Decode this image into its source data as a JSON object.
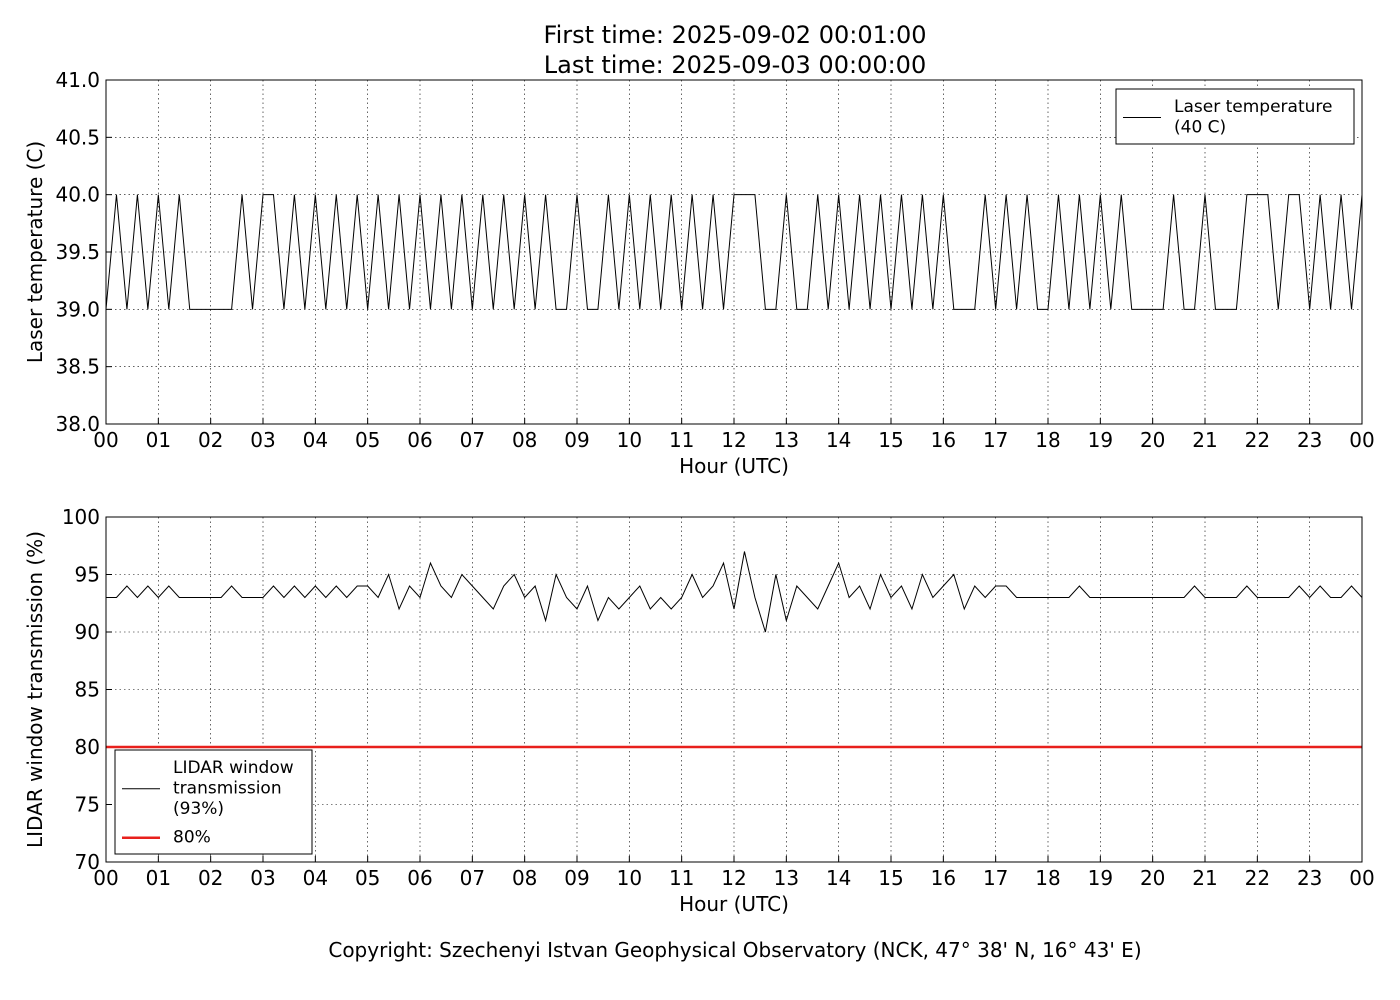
{
  "title": [
    "First time: 2025-09-02 00:01:00",
    "Last time: 2025-09-03 00:00:00"
  ],
  "footer": "Copyright: Szechenyi Istvan Geophysical Observatory (NCK, 47° 38' N, 16° 43' E)",
  "chart_data": [
    {
      "type": "line",
      "xlabel": "Hour (UTC)",
      "ylabel": "Laser temperature (C)",
      "legend": "upper right",
      "grid": true,
      "xlim": [
        0,
        24
      ],
      "ylim": [
        38,
        41
      ],
      "xticks": [
        {
          "value": 0,
          "label": "00"
        },
        {
          "value": 1,
          "label": "01"
        },
        {
          "value": 2,
          "label": "02"
        },
        {
          "value": 3,
          "label": "03"
        },
        {
          "value": 4,
          "label": "04"
        },
        {
          "value": 5,
          "label": "05"
        },
        {
          "value": 6,
          "label": "06"
        },
        {
          "value": 7,
          "label": "07"
        },
        {
          "value": 8,
          "label": "08"
        },
        {
          "value": 9,
          "label": "09"
        },
        {
          "value": 10,
          "label": "10"
        },
        {
          "value": 11,
          "label": "11"
        },
        {
          "value": 12,
          "label": "12"
        },
        {
          "value": 13,
          "label": "13"
        },
        {
          "value": 14,
          "label": "14"
        },
        {
          "value": 15,
          "label": "15"
        },
        {
          "value": 16,
          "label": "16"
        },
        {
          "value": 17,
          "label": "17"
        },
        {
          "value": 18,
          "label": "18"
        },
        {
          "value": 19,
          "label": "19"
        },
        {
          "value": 20,
          "label": "20"
        },
        {
          "value": 21,
          "label": "21"
        },
        {
          "value": 22,
          "label": "22"
        },
        {
          "value": 23,
          "label": "23"
        },
        {
          "value": 24,
          "label": "00"
        }
      ],
      "yticks": [
        {
          "value": 38,
          "label": "38.0"
        },
        38.5,
        {
          "value": 39,
          "label": "39.0"
        },
        39.5,
        {
          "value": 40,
          "label": "40.0"
        },
        40.5,
        {
          "value": 41,
          "label": "41.0"
        }
      ],
      "x": [
        0,
        0.2,
        0.4,
        0.6,
        0.8,
        1,
        1.2,
        1.4,
        1.6,
        1.8,
        2,
        2.2,
        2.4,
        2.6,
        2.8,
        3,
        3.2,
        3.4,
        3.6,
        3.8,
        4,
        4.2,
        4.4,
        4.6,
        4.8,
        5,
        5.2,
        5.4,
        5.6,
        5.8,
        6,
        6.2,
        6.4,
        6.6,
        6.8,
        7,
        7.2,
        7.4,
        7.6,
        7.8,
        8,
        8.2,
        8.4,
        8.6,
        8.8,
        9,
        9.2,
        9.4,
        9.6,
        9.8,
        10,
        10.2,
        10.4,
        10.6,
        10.8,
        11,
        11.2,
        11.4,
        11.6,
        11.8,
        12,
        12.2,
        12.4,
        12.6,
        12.8,
        13,
        13.2,
        13.4,
        13.6,
        13.8,
        14,
        14.2,
        14.4,
        14.6,
        14.8,
        15,
        15.2,
        15.4,
        15.6,
        15.8,
        16,
        16.2,
        16.4,
        16.6,
        16.8,
        17,
        17.2,
        17.4,
        17.6,
        17.8,
        18,
        18.2,
        18.4,
        18.6,
        18.8,
        19,
        19.2,
        19.4,
        19.6,
        19.8,
        20,
        20.2,
        20.4,
        20.6,
        20.8,
        21,
        21.2,
        21.4,
        21.6,
        21.8,
        22,
        22.2,
        22.4,
        22.6,
        22.8,
        23,
        23.2,
        23.4,
        23.6,
        23.8,
        24
      ],
      "series": [
        {
          "name": "Laser temperature\n(40 C)",
          "color": "#000000",
          "values": [
            39,
            40,
            39,
            40,
            39,
            40,
            39,
            40,
            39,
            39,
            39,
            39,
            39,
            40,
            39,
            40,
            40,
            39,
            40,
            39,
            40,
            39,
            40,
            39,
            40,
            39,
            40,
            39,
            40,
            39,
            40,
            39,
            40,
            39,
            40,
            39,
            40,
            39,
            40,
            39,
            40,
            39,
            40,
            39,
            39,
            40,
            39,
            39,
            40,
            39,
            40,
            39,
            40,
            39,
            40,
            39,
            40,
            39,
            40,
            39,
            40,
            40,
            40,
            39,
            39,
            40,
            39,
            39,
            40,
            39,
            40,
            39,
            40,
            39,
            40,
            39,
            40,
            39,
            40,
            39,
            40,
            39,
            39,
            39,
            40,
            39,
            40,
            39,
            40,
            39,
            39,
            40,
            39,
            40,
            39,
            40,
            39,
            40,
            39,
            39,
            39,
            39,
            40,
            39,
            39,
            40,
            39,
            39,
            39,
            40,
            40,
            40,
            39,
            40,
            40,
            39,
            40,
            39,
            40,
            39,
            40
          ]
        }
      ]
    },
    {
      "type": "line",
      "xlabel": "Hour (UTC)",
      "ylabel": "LIDAR window transmission (%)",
      "legend": "lower left",
      "grid": true,
      "xlim": [
        0,
        24
      ],
      "ylim": [
        70,
        100
      ],
      "xticks": [
        {
          "value": 0,
          "label": "00"
        },
        {
          "value": 1,
          "label": "01"
        },
        {
          "value": 2,
          "label": "02"
        },
        {
          "value": 3,
          "label": "03"
        },
        {
          "value": 4,
          "label": "04"
        },
        {
          "value": 5,
          "label": "05"
        },
        {
          "value": 6,
          "label": "06"
        },
        {
          "value": 7,
          "label": "07"
        },
        {
          "value": 8,
          "label": "08"
        },
        {
          "value": 9,
          "label": "09"
        },
        {
          "value": 10,
          "label": "10"
        },
        {
          "value": 11,
          "label": "11"
        },
        {
          "value": 12,
          "label": "12"
        },
        {
          "value": 13,
          "label": "13"
        },
        {
          "value": 14,
          "label": "14"
        },
        {
          "value": 15,
          "label": "15"
        },
        {
          "value": 16,
          "label": "16"
        },
        {
          "value": 17,
          "label": "17"
        },
        {
          "value": 18,
          "label": "18"
        },
        {
          "value": 19,
          "label": "19"
        },
        {
          "value": 20,
          "label": "20"
        },
        {
          "value": 21,
          "label": "21"
        },
        {
          "value": 22,
          "label": "22"
        },
        {
          "value": 23,
          "label": "23"
        },
        {
          "value": 24,
          "label": "00"
        }
      ],
      "yticks": [
        70,
        75,
        80,
        85,
        90,
        95,
        100
      ],
      "x": [
        0,
        0.2,
        0.4,
        0.6,
        0.8,
        1,
        1.2,
        1.4,
        1.6,
        1.8,
        2,
        2.2,
        2.4,
        2.6,
        2.8,
        3,
        3.2,
        3.4,
        3.6,
        3.8,
        4,
        4.2,
        4.4,
        4.6,
        4.8,
        5,
        5.2,
        5.4,
        5.6,
        5.8,
        6,
        6.2,
        6.4,
        6.6,
        6.8,
        7,
        7.2,
        7.4,
        7.6,
        7.8,
        8,
        8.2,
        8.4,
        8.6,
        8.8,
        9,
        9.2,
        9.4,
        9.6,
        9.8,
        10,
        10.2,
        10.4,
        10.6,
        10.8,
        11,
        11.2,
        11.4,
        11.6,
        11.8,
        12,
        12.2,
        12.4,
        12.6,
        12.8,
        13,
        13.2,
        13.4,
        13.6,
        13.8,
        14,
        14.2,
        14.4,
        14.6,
        14.8,
        15,
        15.2,
        15.4,
        15.6,
        15.8,
        16,
        16.2,
        16.4,
        16.6,
        16.8,
        17,
        17.2,
        17.4,
        17.6,
        17.8,
        18,
        18.2,
        18.4,
        18.6,
        18.8,
        19,
        19.2,
        19.4,
        19.6,
        19.8,
        20,
        20.2,
        20.4,
        20.6,
        20.8,
        21,
        21.2,
        21.4,
        21.6,
        21.8,
        22,
        22.2,
        22.4,
        22.6,
        22.8,
        23,
        23.2,
        23.4,
        23.6,
        23.8,
        24
      ],
      "series": [
        {
          "name": "LIDAR window\ntransmission\n(93%)",
          "color": "#000000",
          "values": [
            93,
            93,
            94,
            93,
            94,
            93,
            94,
            93,
            93,
            93,
            93,
            93,
            94,
            93,
            93,
            93,
            94,
            93,
            94,
            93,
            94,
            93,
            94,
            93,
            94,
            94,
            93,
            95,
            92,
            94,
            93,
            96,
            94,
            93,
            95,
            94,
            93,
            92,
            94,
            95,
            93,
            94,
            91,
            95,
            93,
            92,
            94,
            91,
            93,
            92,
            93,
            94,
            92,
            93,
            92,
            93,
            95,
            93,
            94,
            96,
            92,
            97,
            93,
            90,
            95,
            91,
            94,
            93,
            92,
            94,
            96,
            93,
            94,
            92,
            95,
            93,
            94,
            92,
            95,
            93,
            94,
            95,
            92,
            94,
            93,
            94,
            94,
            93,
            93,
            93,
            93,
            93,
            93,
            94,
            93,
            93,
            93,
            93,
            93,
            93,
            93,
            93,
            93,
            93,
            94,
            93,
            93,
            93,
            93,
            94,
            93,
            93,
            93,
            93,
            94,
            93,
            94,
            93,
            93,
            94,
            93
          ]
        },
        {
          "name": "80%",
          "color": "#e8201c",
          "x": [
            0,
            24
          ],
          "values": [
            80,
            80
          ]
        }
      ]
    }
  ]
}
